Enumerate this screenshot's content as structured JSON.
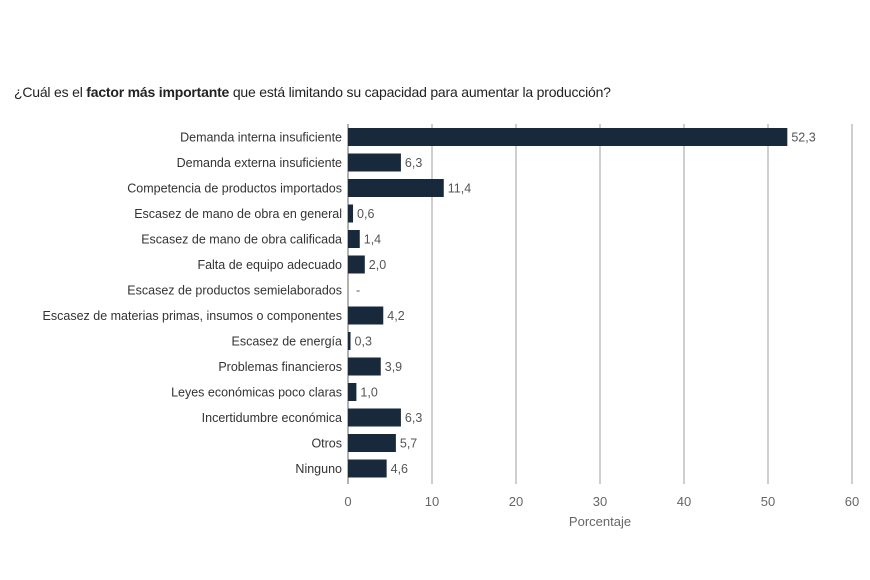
{
  "chart_data": {
    "type": "bar",
    "orientation": "horizontal",
    "title_parts": [
      "¿Cuál es el ",
      "factor más importante",
      " que está limitando su capacidad para aumentar la producción?"
    ],
    "categories": [
      "Demanda interna insuficiente",
      "Demanda externa insuficiente",
      "Competencia de productos importados",
      "Escasez de mano de obra en general",
      "Escasez de mano de obra calificada",
      "Falta de equipo adecuado",
      "Escasez de productos semielaborados",
      "Escasez de materias primas, insumos o componentes",
      "Escasez de energía",
      "Problemas financieros",
      "Leyes económicas poco claras",
      "Incertidumbre económica",
      "Otros",
      "Ninguno"
    ],
    "values": [
      52.3,
      6.3,
      11.4,
      0.6,
      1.4,
      2.0,
      null,
      4.2,
      0.3,
      3.9,
      1.0,
      6.3,
      5.7,
      4.6
    ],
    "value_labels": [
      "52,3",
      "6,3",
      "11,4",
      "0,6",
      "1,4",
      "2,0",
      "-",
      "4,2",
      "0,3",
      "3,9",
      "1,0",
      "6,3",
      "5,7",
      "4,6"
    ],
    "xlabel": "Porcentaje",
    "xlim": [
      0,
      60
    ],
    "xticks": [
      0,
      10,
      20,
      30,
      40,
      50,
      60
    ],
    "grid": true,
    "bar_color": "#17293a"
  }
}
